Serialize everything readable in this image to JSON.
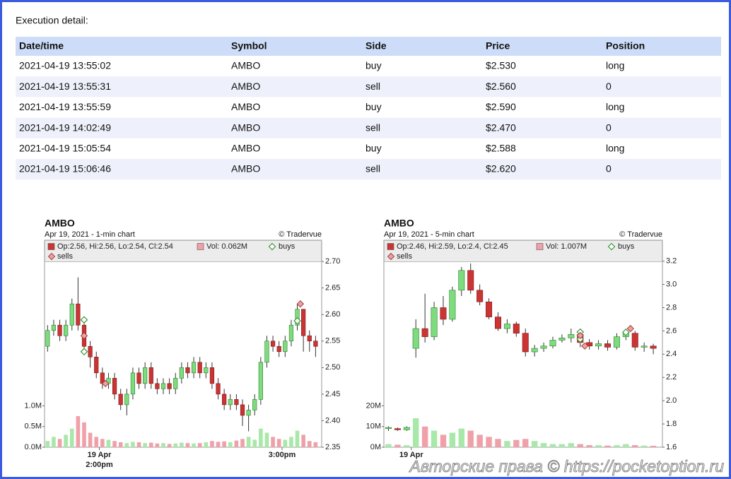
{
  "header": {
    "title": "Execution detail:"
  },
  "table": {
    "columns": [
      "Date/time",
      "Symbol",
      "Side",
      "Price",
      "Position"
    ],
    "rows": [
      [
        "2021-04-19 13:55:02",
        "AMBO",
        "buy",
        "$2.530",
        "long"
      ],
      [
        "2021-04-19 13:55:31",
        "AMBO",
        "sell",
        "$2.560",
        "0"
      ],
      [
        "2021-04-19 13:55:59",
        "AMBO",
        "buy",
        "$2.590",
        "long"
      ],
      [
        "2021-04-19 14:02:49",
        "AMBO",
        "sell",
        "$2.470",
        "0"
      ],
      [
        "2021-04-19 15:05:54",
        "AMBO",
        "buy",
        "$2.588",
        "long"
      ],
      [
        "2021-04-19 15:06:46",
        "AMBO",
        "sell",
        "$2.620",
        "0"
      ]
    ]
  },
  "chart_data": [
    {
      "type": "candlestick",
      "title": "AMBO",
      "subtitle": "Apr 19, 2021 - 1-min chart",
      "credit": "© Tradervue",
      "legend": {
        "ohlc": "Op:2.56, Hi:2.56, Lo:2.54, Cl:2.54",
        "volume": "Vol: 0.062M",
        "buys": "buys",
        "sells": "sells"
      },
      "up_color": "#7ddc7d",
      "down_color": "#cc3333",
      "volume_up_color": "#a8e8a8",
      "volume_down_color": "#f0a0a8",
      "buy_color": "#3a9a3a",
      "sell_color": "#f0a0a0",
      "xlim": [
        0,
        91
      ],
      "date_ticks": [
        {
          "value": 18,
          "label": "19 Apr"
        }
      ],
      "xticks": [
        {
          "value": 18,
          "label": "2:00pm"
        },
        {
          "value": 78,
          "label": "3:00pm"
        }
      ],
      "ylim": [
        2.35,
        2.74
      ],
      "yticks": [
        2.35,
        {
          "value": 2.4,
          "label": "2.40"
        },
        2.45,
        {
          "value": 2.5,
          "label": "2.50"
        },
        2.55,
        {
          "value": 2.6,
          "label": "2.60"
        },
        2.65,
        {
          "value": 2.7,
          "label": "2.70"
        }
      ],
      "volume_lim": [
        0,
        5000000
      ],
      "volume_ticks": [
        {
          "value": 0,
          "label": "0.0M"
        },
        {
          "value": 500000,
          "label": "0.5M"
        },
        {
          "value": 1000000,
          "label": "1.0M"
        }
      ],
      "x": [
        1,
        3,
        5,
        7,
        9,
        11,
        13,
        15,
        17,
        19,
        21,
        23,
        25,
        27,
        29,
        31,
        33,
        35,
        37,
        39,
        41,
        43,
        45,
        47,
        49,
        51,
        53,
        55,
        57,
        59,
        61,
        63,
        65,
        67,
        69,
        71,
        73,
        75,
        77,
        79,
        81,
        83,
        85,
        87,
        89
      ],
      "open": [
        2.54,
        2.57,
        2.58,
        2.56,
        2.58,
        2.62,
        2.58,
        2.54,
        2.52,
        2.49,
        2.47,
        2.48,
        2.45,
        2.43,
        2.45,
        2.49,
        2.47,
        2.5,
        2.47,
        2.46,
        2.47,
        2.46,
        2.48,
        2.5,
        2.49,
        2.51,
        2.49,
        2.5,
        2.47,
        2.45,
        2.43,
        2.44,
        2.43,
        2.41,
        2.42,
        2.44,
        2.51,
        2.55,
        2.54,
        2.53,
        2.55,
        2.58,
        2.61,
        2.56,
        2.55
      ],
      "high": [
        2.58,
        2.59,
        2.59,
        2.59,
        2.63,
        2.67,
        2.59,
        2.55,
        2.53,
        2.5,
        2.49,
        2.49,
        2.46,
        2.46,
        2.5,
        2.5,
        2.51,
        2.51,
        2.48,
        2.48,
        2.48,
        2.49,
        2.51,
        2.51,
        2.52,
        2.52,
        2.51,
        2.51,
        2.48,
        2.46,
        2.45,
        2.45,
        2.44,
        2.43,
        2.45,
        2.52,
        2.56,
        2.56,
        2.55,
        2.56,
        2.59,
        2.62,
        2.61,
        2.57,
        2.56
      ],
      "low": [
        2.53,
        2.56,
        2.55,
        2.55,
        2.57,
        2.57,
        2.53,
        2.5,
        2.48,
        2.46,
        2.46,
        2.44,
        2.42,
        2.41,
        2.44,
        2.46,
        2.46,
        2.46,
        2.45,
        2.45,
        2.45,
        2.45,
        2.47,
        2.48,
        2.48,
        2.48,
        2.48,
        2.46,
        2.44,
        2.42,
        2.42,
        2.42,
        2.39,
        2.38,
        2.41,
        2.43,
        2.5,
        2.53,
        2.52,
        2.52,
        2.54,
        2.57,
        2.53,
        2.53,
        2.52
      ],
      "close": [
        2.57,
        2.58,
        2.56,
        2.58,
        2.62,
        2.58,
        2.54,
        2.52,
        2.49,
        2.47,
        2.48,
        2.45,
        2.43,
        2.45,
        2.49,
        2.47,
        2.5,
        2.47,
        2.46,
        2.47,
        2.46,
        2.48,
        2.5,
        2.49,
        2.51,
        2.49,
        2.5,
        2.47,
        2.45,
        2.43,
        2.44,
        2.43,
        2.41,
        2.42,
        2.44,
        2.51,
        2.55,
        2.54,
        2.53,
        2.55,
        2.58,
        2.61,
        2.56,
        2.55,
        2.54
      ],
      "volume": [
        150000,
        250000,
        200000,
        300000,
        450000,
        750000,
        600000,
        350000,
        250000,
        200000,
        180000,
        150000,
        120000,
        100000,
        130000,
        120000,
        100000,
        110000,
        90000,
        100000,
        80000,
        90000,
        110000,
        100000,
        90000,
        100000,
        120000,
        150000,
        130000,
        140000,
        120000,
        160000,
        200000,
        250000,
        180000,
        450000,
        350000,
        250000,
        200000,
        180000,
        250000,
        400000,
        300000,
        150000,
        120000
      ],
      "buys": {
        "x": [
          13,
          13,
          83
        ],
        "values": [
          2.53,
          2.59,
          2.588
        ]
      },
      "sells": {
        "x": [
          13,
          20,
          84
        ],
        "values": [
          2.56,
          2.47,
          2.62
        ]
      }
    },
    {
      "type": "candlestick",
      "title": "AMBO",
      "subtitle": "Apr 19, 2021 - 5-min chart",
      "credit": "© Tradervue",
      "legend": {
        "ohlc": "Op:2.46, Hi:2.59, Lo:2.4, Cl:2.45",
        "volume": "Vol: 1.007M",
        "buys": "buys",
        "sells": "sells"
      },
      "up_color": "#7ddc7d",
      "down_color": "#cc3333",
      "volume_up_color": "#a8e8a8",
      "volume_down_color": "#f0a0a8",
      "buy_color": "#3a9a3a",
      "sell_color": "#f0a0a0",
      "xlim": [
        0,
        61
      ],
      "date_ticks": [
        {
          "value": 6,
          "label": "19 Apr"
        }
      ],
      "ylim": [
        1.6,
        3.38
      ],
      "yticks": [
        1.6,
        1.8,
        {
          "value": 2,
          "label": "2.0"
        },
        2.2,
        2.4,
        2.6,
        2.8,
        {
          "value": 3,
          "label": "3.0"
        },
        3.2
      ],
      "volume_lim": [
        0,
        100000000
      ],
      "volume_ticks": [
        {
          "value": 0,
          "label": "0M"
        },
        {
          "value": 10000000,
          "label": "10M"
        },
        {
          "value": 20000000,
          "label": "20M"
        }
      ],
      "x": [
        1,
        3,
        5,
        7,
        9,
        11,
        13,
        15,
        17,
        19,
        21,
        23,
        25,
        27,
        29,
        31,
        33,
        35,
        37,
        39,
        41,
        43,
        45,
        47,
        49,
        51,
        53,
        55,
        57,
        59
      ],
      "open": [
        1.76,
        1.76,
        1.75,
        2.45,
        2.62,
        2.55,
        2.8,
        2.7,
        2.95,
        3.12,
        2.95,
        2.85,
        2.72,
        2.62,
        2.66,
        2.58,
        2.42,
        2.45,
        2.47,
        2.52,
        2.54,
        2.57,
        2.5,
        2.47,
        2.49,
        2.46,
        2.55,
        2.58,
        2.46,
        2.47
      ],
      "high": [
        1.78,
        1.77,
        1.78,
        2.7,
        2.92,
        2.85,
        2.9,
        2.98,
        3.15,
        3.18,
        3.0,
        2.88,
        2.76,
        2.7,
        2.68,
        2.62,
        2.48,
        2.5,
        2.55,
        2.57,
        2.62,
        2.6,
        2.53,
        2.52,
        2.52,
        2.58,
        2.62,
        2.6,
        2.5,
        2.49
      ],
      "low": [
        1.74,
        1.74,
        1.74,
        2.37,
        2.5,
        2.52,
        2.65,
        2.68,
        2.9,
        2.92,
        2.82,
        2.7,
        2.6,
        2.58,
        2.55,
        2.38,
        2.38,
        2.42,
        2.45,
        2.5,
        2.5,
        2.46,
        2.44,
        2.44,
        2.43,
        2.44,
        2.52,
        2.43,
        2.42,
        2.4
      ],
      "close": [
        1.77,
        1.75,
        1.77,
        2.62,
        2.55,
        2.8,
        2.7,
        2.95,
        3.12,
        2.95,
        2.85,
        2.72,
        2.62,
        2.66,
        2.58,
        2.42,
        2.45,
        2.47,
        2.52,
        2.54,
        2.57,
        2.5,
        2.47,
        2.49,
        2.46,
        2.55,
        2.58,
        2.46,
        2.47,
        2.45
      ],
      "volume": [
        1500000,
        1200000,
        1000000,
        14000000,
        10000000,
        8000000,
        6000000,
        7000000,
        9000000,
        8000000,
        6000000,
        5000000,
        4000000,
        3000000,
        3500000,
        4000000,
        3000000,
        2000000,
        1500000,
        1500000,
        2000000,
        1500000,
        1000000,
        1000000,
        800000,
        1000000,
        1500000,
        1000000,
        800000,
        700000
      ],
      "buys": {
        "x": [
          43,
          43,
          53
        ],
        "values": [
          2.53,
          2.59,
          2.588
        ]
      },
      "sells": {
        "x": [
          43,
          44,
          54
        ],
        "values": [
          2.56,
          2.47,
          2.62
        ]
      }
    }
  ],
  "watermark": "Авторские права © https://pocketoption.ru"
}
